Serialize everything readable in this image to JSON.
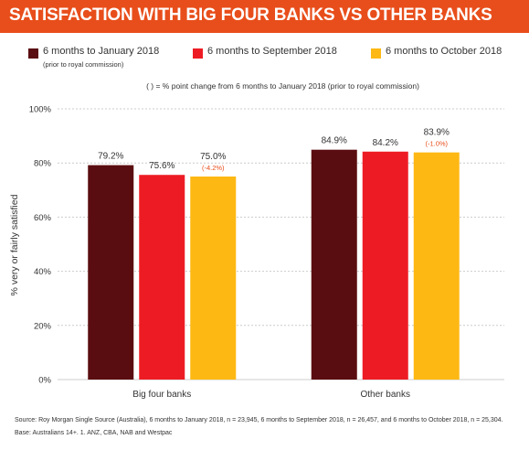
{
  "title": "SATISFACTION WITH BIG FOUR BANKS VS OTHER BANKS",
  "note": "( ) = % point change from 6 months to January 2018 (prior to royal commission)",
  "source": "Source: Roy Morgan Single Source (Australia), 6 months to January 2018, n = 23,945, 6 months to September 2018, n = 26,457, and 6 months to October 2018, n = 25,304.",
  "base": "Base: Australians 14+. 1. ANZ, CBA, NAB and Westpac",
  "colors": {
    "header": "#e84e1b",
    "series": [
      "#5a0d10",
      "#ed1c24",
      "#fdb813"
    ],
    "change_label": "#e84e1b",
    "grid": "#cccccc"
  },
  "legend": [
    {
      "label": "6 months to January 2018",
      "sublabel": "(prior to royal commission)"
    },
    {
      "label": "6 months to September 2018",
      "sublabel": ""
    },
    {
      "label": "6 months to October 2018",
      "sublabel": ""
    }
  ],
  "chart_data": {
    "type": "bar",
    "title": "SATISFACTION WITH BIG FOUR BANKS VS OTHER BANKS",
    "xlabel": "",
    "ylabel": "% very or fairly satisfied",
    "categories": [
      "Big four banks",
      "Other banks"
    ],
    "series": [
      {
        "name": "6 months to January 2018",
        "values": [
          79.2,
          84.9
        ],
        "labels": [
          "79.2%",
          "84.9%"
        ],
        "changes": [
          "",
          ""
        ]
      },
      {
        "name": "6 months to September 2018",
        "values": [
          75.6,
          84.2
        ],
        "labels": [
          "75.6%",
          "84.2%"
        ],
        "changes": [
          "",
          ""
        ]
      },
      {
        "name": "6 months to October 2018",
        "values": [
          75.0,
          83.9
        ],
        "labels": [
          "75.0%",
          "83.9%"
        ],
        "changes": [
          "(-4.2%)",
          "(-1.0%)"
        ]
      }
    ],
    "ylim": [
      0,
      100
    ],
    "yticks": [
      0,
      20,
      40,
      60,
      80,
      100
    ],
    "ytick_labels": [
      "0%",
      "20%",
      "40%",
      "60%",
      "80%",
      "100%"
    ],
    "grid": true,
    "legend_position": "top"
  }
}
